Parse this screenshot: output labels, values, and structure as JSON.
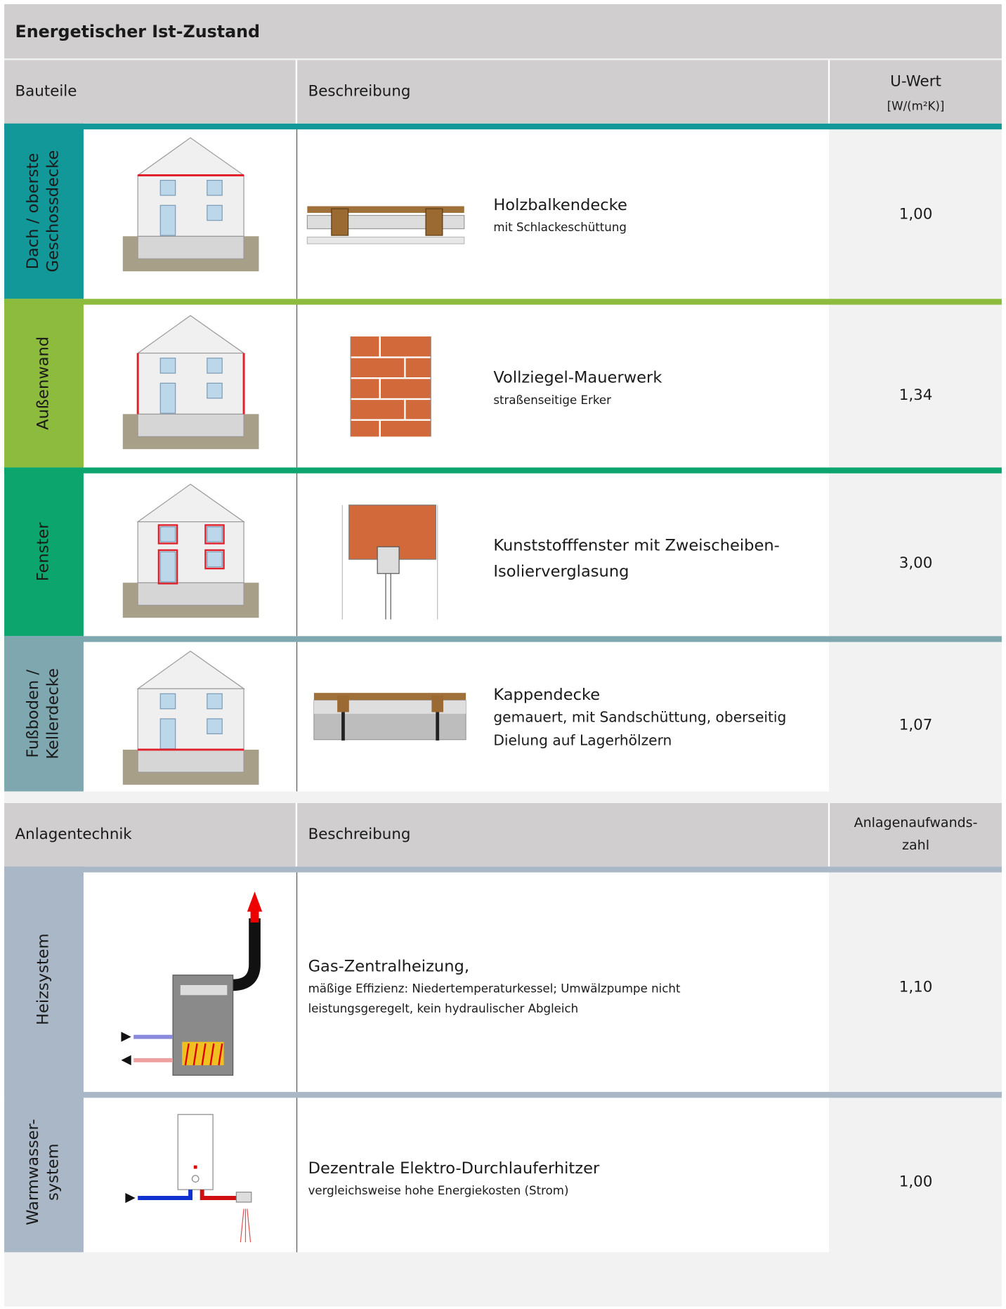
{
  "header": {
    "title": "Energetischer Ist-Zustand"
  },
  "sections": [
    {
      "columns": [
        "Bauteile",
        "Beschreibung",
        "U-Wert"
      ],
      "unit": "[W/(m²K)]",
      "rows": [
        {
          "label_lines": [
            "Dach / oberste",
            "Geschossdecke"
          ],
          "color": "#13989a",
          "title_lines": [
            "Holzbalkendecke"
          ],
          "subtitle_lines": [
            "mit Schlackeschüttung"
          ],
          "value": "1,00"
        },
        {
          "label_lines": [
            "Außenwand"
          ],
          "color": "#8dbb3d",
          "title_lines": [
            "Vollziegel-Mauerwerk"
          ],
          "subtitle_lines": [
            "straßenseitige Erker"
          ],
          "value": "1,34"
        },
        {
          "label_lines": [
            "Fenster"
          ],
          "color": "#0ba56d",
          "title_lines": [
            "Kunststofffenster mit Zweischeiben-",
            "Isolierverglasung"
          ],
          "subtitle_lines": [],
          "value": "3,00"
        },
        {
          "label_lines": [
            "Fußboden /",
            "Kellerdecke"
          ],
          "color": "#7ea7b0",
          "title_lines": [
            "Kappendecke"
          ],
          "subtitle_lines": [
            "gemauert, mit Sandschüttung, oberseitig",
            "Dielung auf Lagerhölzern"
          ],
          "value": "1,07"
        }
      ]
    },
    {
      "columns": [
        "Anlagentechnik",
        "Beschreibung",
        "Anlagenaufwands-",
        "zahl"
      ],
      "rows": [
        {
          "label_lines": [
            "Heizsystem"
          ],
          "color": "#a9b7c7",
          "title_lines": [
            "Gas-Zentralheizung,"
          ],
          "subtitle_lines": [
            "mäßige Effizienz: Niedertemperaturkessel; Umwälzpumpe nicht",
            "leistungsgeregelt, kein hydraulischer Abgleich"
          ],
          "value": "1,10"
        },
        {
          "label_lines": [
            "Warmwasser-",
            "system"
          ],
          "color": "#a9b7c7",
          "title_lines": [
            "Dezentrale Elektro-Durchlauferhitzer"
          ],
          "subtitle_lines": [
            "vergleichsweise hohe Energiekosten (Strom)"
          ],
          "value": "1,00"
        }
      ]
    }
  ]
}
